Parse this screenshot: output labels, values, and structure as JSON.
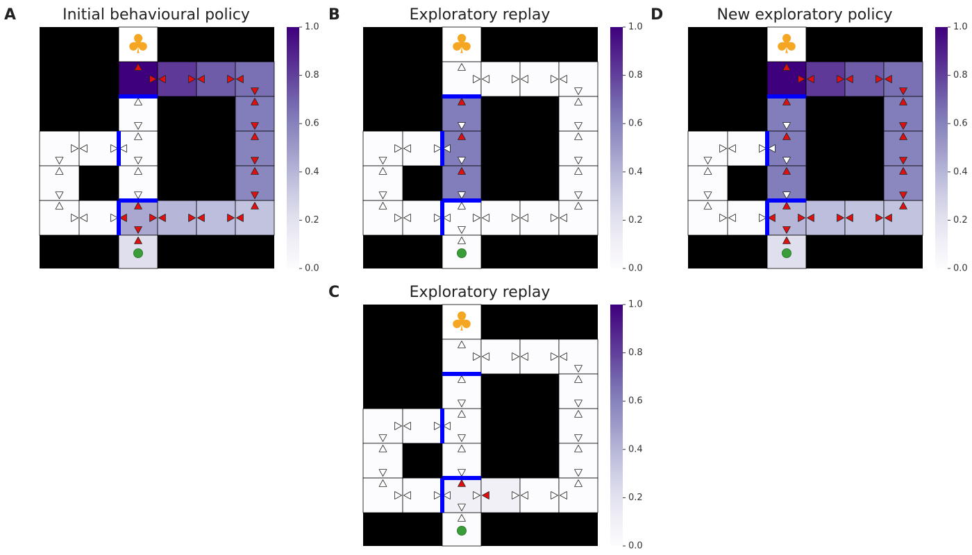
{
  "panels": [
    {
      "letter": "A",
      "title": "Initial behavioural policy",
      "grid_values": [
        [
          0,
          0,
          0,
          0,
          0,
          0
        ],
        [
          null,
          null,
          1.0,
          0.82,
          0.72,
          0.66
        ],
        [
          null,
          null,
          0.0,
          null,
          null,
          0.62
        ],
        [
          0.0,
          0.0,
          0.0,
          null,
          null,
          0.6
        ],
        [
          0.0,
          null,
          0.0,
          null,
          null,
          0.58
        ],
        [
          0.0,
          0.0,
          0.45,
          0.4,
          0.37,
          0.35
        ],
        [
          null,
          null,
          0.22,
          null,
          null,
          null
        ]
      ],
      "red_arrows": [
        [
          1,
          2,
          "u"
        ],
        [
          1,
          2,
          "r"
        ],
        [
          1,
          3,
          "l"
        ],
        [
          1,
          3,
          "r"
        ],
        [
          1,
          4,
          "l"
        ],
        [
          1,
          4,
          "r"
        ],
        [
          1,
          5,
          "l"
        ],
        [
          1,
          5,
          "d"
        ],
        [
          2,
          5,
          "u"
        ],
        [
          2,
          5,
          "d"
        ],
        [
          3,
          5,
          "u"
        ],
        [
          3,
          5,
          "d"
        ],
        [
          4,
          5,
          "u"
        ],
        [
          4,
          5,
          "d"
        ],
        [
          5,
          5,
          "u"
        ],
        [
          5,
          5,
          "l"
        ],
        [
          5,
          4,
          "r"
        ],
        [
          5,
          4,
          "l"
        ],
        [
          5,
          3,
          "r"
        ],
        [
          5,
          3,
          "l"
        ],
        [
          5,
          2,
          "u"
        ],
        [
          5,
          2,
          "r"
        ],
        [
          5,
          2,
          "l"
        ],
        [
          5,
          2,
          "d"
        ],
        [
          6,
          2,
          "u"
        ]
      ],
      "white_arrows": [
        [
          2,
          2,
          "u"
        ],
        [
          2,
          2,
          "d"
        ],
        [
          3,
          2,
          "u"
        ],
        [
          3,
          2,
          "d"
        ],
        [
          3,
          2,
          "l"
        ],
        [
          4,
          2,
          "u"
        ],
        [
          4,
          2,
          "d"
        ],
        [
          3,
          0,
          "r"
        ],
        [
          3,
          0,
          "d"
        ],
        [
          3,
          1,
          "l"
        ],
        [
          3,
          1,
          "r"
        ],
        [
          4,
          0,
          "u"
        ],
        [
          4,
          0,
          "d"
        ],
        [
          5,
          0,
          "u"
        ],
        [
          5,
          0,
          "r"
        ],
        [
          5,
          1,
          "l"
        ],
        [
          5,
          1,
          "r"
        ]
      ],
      "barriers": [
        [
          2,
          2,
          "top"
        ],
        [
          3,
          2,
          "left"
        ],
        [
          5,
          2,
          "top"
        ],
        [
          5,
          2,
          "left"
        ]
      ]
    },
    {
      "letter": "B",
      "title": "Exploratory replay",
      "grid_values": [
        [
          0,
          0,
          0,
          0,
          0,
          0
        ],
        [
          null,
          null,
          0.0,
          0.0,
          0.0,
          0.0
        ],
        [
          null,
          null,
          0.62,
          null,
          null,
          0.0
        ],
        [
          0.0,
          0.0,
          0.62,
          null,
          null,
          0.0
        ],
        [
          0.0,
          null,
          0.62,
          null,
          null,
          0.0
        ],
        [
          0.0,
          0.0,
          0.0,
          0.0,
          0.0,
          0.0
        ],
        [
          null,
          null,
          0.0,
          null,
          null,
          null
        ]
      ],
      "red_arrows": [
        [
          2,
          2,
          "u"
        ],
        [
          3,
          2,
          "u"
        ],
        [
          4,
          2,
          "u"
        ]
      ],
      "white_arrows": [
        [
          1,
          2,
          "u"
        ],
        [
          1,
          2,
          "r"
        ],
        [
          1,
          3,
          "l"
        ],
        [
          1,
          3,
          "r"
        ],
        [
          1,
          4,
          "l"
        ],
        [
          1,
          4,
          "r"
        ],
        [
          1,
          5,
          "l"
        ],
        [
          1,
          5,
          "d"
        ],
        [
          2,
          5,
          "u"
        ],
        [
          2,
          5,
          "d"
        ],
        [
          3,
          5,
          "u"
        ],
        [
          3,
          5,
          "d"
        ],
        [
          4,
          5,
          "u"
        ],
        [
          4,
          5,
          "d"
        ],
        [
          5,
          5,
          "u"
        ],
        [
          5,
          5,
          "l"
        ],
        [
          5,
          4,
          "r"
        ],
        [
          5,
          4,
          "l"
        ],
        [
          5,
          3,
          "r"
        ],
        [
          5,
          3,
          "l"
        ],
        [
          2,
          2,
          "d"
        ],
        [
          3,
          2,
          "d"
        ],
        [
          4,
          2,
          "d"
        ],
        [
          3,
          2,
          "l"
        ],
        [
          5,
          2,
          "u"
        ],
        [
          5,
          2,
          "r"
        ],
        [
          5,
          2,
          "l"
        ],
        [
          5,
          2,
          "d"
        ],
        [
          6,
          2,
          "u"
        ],
        [
          3,
          0,
          "r"
        ],
        [
          3,
          0,
          "d"
        ],
        [
          3,
          1,
          "l"
        ],
        [
          3,
          1,
          "r"
        ],
        [
          4,
          0,
          "u"
        ],
        [
          4,
          0,
          "d"
        ],
        [
          5,
          0,
          "u"
        ],
        [
          5,
          0,
          "r"
        ],
        [
          5,
          1,
          "l"
        ],
        [
          5,
          1,
          "r"
        ]
      ],
      "barriers": [
        [
          2,
          2,
          "top"
        ],
        [
          3,
          2,
          "left"
        ],
        [
          5,
          2,
          "top"
        ],
        [
          5,
          2,
          "left"
        ]
      ]
    },
    {
      "letter": "C",
      "title": "Exploratory replay",
      "grid_values": [
        [
          0,
          0,
          0,
          0,
          0,
          0
        ],
        [
          null,
          null,
          0.0,
          0.0,
          0.0,
          0.0
        ],
        [
          null,
          null,
          0.0,
          null,
          null,
          0.0
        ],
        [
          0.0,
          0.0,
          0.0,
          null,
          null,
          0.0
        ],
        [
          0.0,
          null,
          0.0,
          null,
          null,
          0.0
        ],
        [
          0.0,
          0.0,
          0.1,
          0.1,
          0.0,
          0.0
        ],
        [
          null,
          null,
          0.0,
          null,
          null,
          null
        ]
      ],
      "red_arrows": [
        [
          5,
          2,
          "u"
        ],
        [
          5,
          3,
          "l"
        ]
      ],
      "white_arrows": [
        [
          1,
          2,
          "u"
        ],
        [
          1,
          2,
          "r"
        ],
        [
          1,
          3,
          "l"
        ],
        [
          1,
          3,
          "r"
        ],
        [
          1,
          4,
          "l"
        ],
        [
          1,
          4,
          "r"
        ],
        [
          1,
          5,
          "l"
        ],
        [
          1,
          5,
          "d"
        ],
        [
          2,
          5,
          "u"
        ],
        [
          2,
          5,
          "d"
        ],
        [
          3,
          5,
          "u"
        ],
        [
          3,
          5,
          "d"
        ],
        [
          4,
          5,
          "u"
        ],
        [
          4,
          5,
          "d"
        ],
        [
          5,
          5,
          "u"
        ],
        [
          5,
          5,
          "l"
        ],
        [
          5,
          4,
          "r"
        ],
        [
          5,
          4,
          "l"
        ],
        [
          5,
          3,
          "r"
        ],
        [
          2,
          2,
          "u"
        ],
        [
          2,
          2,
          "d"
        ],
        [
          3,
          2,
          "u"
        ],
        [
          3,
          2,
          "d"
        ],
        [
          3,
          2,
          "l"
        ],
        [
          4,
          2,
          "u"
        ],
        [
          4,
          2,
          "d"
        ],
        [
          5,
          2,
          "r"
        ],
        [
          5,
          2,
          "l"
        ],
        [
          5,
          2,
          "d"
        ],
        [
          6,
          2,
          "u"
        ],
        [
          3,
          0,
          "r"
        ],
        [
          3,
          0,
          "d"
        ],
        [
          3,
          1,
          "l"
        ],
        [
          3,
          1,
          "r"
        ],
        [
          4,
          0,
          "u"
        ],
        [
          4,
          0,
          "d"
        ],
        [
          5,
          0,
          "u"
        ],
        [
          5,
          0,
          "r"
        ],
        [
          5,
          1,
          "l"
        ],
        [
          5,
          1,
          "r"
        ]
      ],
      "barriers": [
        [
          2,
          2,
          "top"
        ],
        [
          3,
          2,
          "left"
        ],
        [
          5,
          2,
          "top"
        ],
        [
          5,
          2,
          "left"
        ]
      ]
    },
    {
      "letter": "D",
      "title": "New exploratory policy",
      "grid_values": [
        [
          0,
          0,
          0,
          0,
          0,
          0
        ],
        [
          null,
          null,
          1.0,
          0.82,
          0.72,
          0.66
        ],
        [
          null,
          null,
          0.62,
          null,
          null,
          0.62
        ],
        [
          0.0,
          0.0,
          0.62,
          null,
          null,
          0.6
        ],
        [
          0.0,
          null,
          0.62,
          null,
          null,
          0.58
        ],
        [
          0.0,
          0.0,
          0.4,
          0.37,
          0.35,
          0.35
        ],
        [
          null,
          null,
          0.22,
          null,
          null,
          null
        ]
      ],
      "red_arrows": [
        [
          1,
          2,
          "u"
        ],
        [
          1,
          2,
          "r"
        ],
        [
          1,
          3,
          "l"
        ],
        [
          1,
          3,
          "r"
        ],
        [
          1,
          4,
          "l"
        ],
        [
          1,
          4,
          "r"
        ],
        [
          1,
          5,
          "l"
        ],
        [
          1,
          5,
          "d"
        ],
        [
          2,
          5,
          "u"
        ],
        [
          2,
          5,
          "d"
        ],
        [
          3,
          5,
          "u"
        ],
        [
          3,
          5,
          "d"
        ],
        [
          4,
          5,
          "u"
        ],
        [
          4,
          5,
          "d"
        ],
        [
          5,
          5,
          "u"
        ],
        [
          5,
          5,
          "l"
        ],
        [
          5,
          4,
          "r"
        ],
        [
          5,
          4,
          "l"
        ],
        [
          5,
          3,
          "r"
        ],
        [
          5,
          3,
          "l"
        ],
        [
          5,
          2,
          "u"
        ],
        [
          5,
          2,
          "r"
        ],
        [
          5,
          2,
          "l"
        ],
        [
          5,
          2,
          "d"
        ],
        [
          6,
          2,
          "u"
        ],
        [
          2,
          2,
          "u"
        ],
        [
          3,
          2,
          "u"
        ],
        [
          4,
          2,
          "u"
        ]
      ],
      "white_arrows": [
        [
          2,
          2,
          "d"
        ],
        [
          3,
          2,
          "d"
        ],
        [
          4,
          2,
          "d"
        ],
        [
          3,
          2,
          "l"
        ],
        [
          3,
          0,
          "r"
        ],
        [
          3,
          0,
          "d"
        ],
        [
          3,
          1,
          "l"
        ],
        [
          3,
          1,
          "r"
        ],
        [
          4,
          0,
          "u"
        ],
        [
          4,
          0,
          "d"
        ],
        [
          5,
          0,
          "u"
        ],
        [
          5,
          0,
          "r"
        ],
        [
          5,
          1,
          "l"
        ],
        [
          5,
          1,
          "r"
        ]
      ],
      "barriers": [
        [
          2,
          2,
          "top"
        ],
        [
          3,
          2,
          "left"
        ],
        [
          5,
          2,
          "top"
        ],
        [
          5,
          2,
          "left"
        ]
      ]
    }
  ],
  "maze": {
    "rows": 7,
    "cols": 6,
    "open_cells": [
      [
        0,
        2
      ],
      [
        1,
        2
      ],
      [
        1,
        3
      ],
      [
        1,
        4
      ],
      [
        1,
        5
      ],
      [
        2,
        2
      ],
      [
        2,
        5
      ],
      [
        3,
        0
      ],
      [
        3,
        1
      ],
      [
        3,
        2
      ],
      [
        3,
        5
      ],
      [
        4,
        0
      ],
      [
        4,
        2
      ],
      [
        4,
        5
      ],
      [
        5,
        0
      ],
      [
        5,
        1
      ],
      [
        5,
        2
      ],
      [
        5,
        3
      ],
      [
        5,
        4
      ],
      [
        5,
        5
      ],
      [
        6,
        2
      ]
    ],
    "goal_cell": [
      0,
      2
    ],
    "goal_symbol": "♣",
    "start_cell": [
      6,
      2
    ]
  },
  "colorbar": {
    "ticks": [
      "0.0",
      "0.2",
      "0.4",
      "0.6",
      "0.8",
      "1.0"
    ],
    "vmin": 0.0,
    "vmax": 1.0,
    "cmap": "Purples",
    "cmap_low": "#fcfbfd",
    "cmap_high": "#3f007d"
  },
  "colors": {
    "wall": "#000000",
    "barrier": "#0000ff",
    "red_arrow": "#e01010",
    "white_arrow": "#ffffff",
    "goal": "#f5a623",
    "start": "#3a9d3a"
  }
}
